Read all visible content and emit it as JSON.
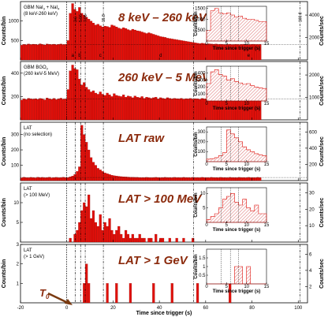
{
  "chart_data": {
    "type": "bar",
    "xlabel": "Time since trigger (s)",
    "xlim": [
      -20,
      104
    ],
    "x_ticks": [
      -20,
      0,
      20,
      40,
      60,
      80,
      100
    ],
    "bin_width_s": 1,
    "vertical_lines": [
      {
        "x": 0,
        "label": ""
      },
      {
        "x": 3.6,
        "label": "3.6"
      },
      {
        "x": 5.96,
        "label": "5.96"
      },
      {
        "x": 7.96,
        "label": "7.96"
      },
      {
        "x": 15.8,
        "label": "15.8"
      },
      {
        "x": 54.7,
        "label": "54.7"
      },
      {
        "x": 100.8,
        "label": "100.8"
      }
    ],
    "interval_labels": [
      "a",
      "b",
      "c",
      "d",
      "e"
    ],
    "t0_label": "T",
    "t0_sub": "0",
    "panels": [
      {
        "title": "8 keV – 260 keV",
        "detector": [
          "GBM NaI",
          "3",
          " + NaI",
          "4",
          "(8 keV-260 keV)"
        ],
        "ylabel_left": "Counts/bin",
        "ylabel_right": "Counts/sec",
        "ylim": [
          0,
          1500
        ],
        "y_ticks": [
          500,
          1000
        ],
        "y2_ticks": [
          2000,
          4000
        ],
        "background": 400,
        "values": [
          380,
          400,
          390,
          410,
          395,
          405,
          400,
          390,
          415,
          400,
          385,
          410,
          400,
          395,
          405,
          390,
          400,
          410,
          395,
          400,
          500,
          1200,
          1450,
          1300,
          1250,
          1350,
          1200,
          1150,
          1100,
          1050,
          1000,
          950,
          900,
          920,
          880,
          850,
          870,
          860,
          840,
          900,
          880,
          850,
          820,
          800,
          830,
          810,
          780,
          760,
          790,
          770,
          750,
          740,
          720,
          700,
          680,
          700,
          680,
          660,
          640,
          620,
          600,
          590,
          580,
          560,
          550,
          540,
          530,
          520,
          510,
          500,
          490,
          480,
          470,
          460,
          450,
          440,
          430,
          420,
          430,
          420,
          410,
          415,
          410,
          405,
          410,
          400,
          405,
          400,
          395,
          400,
          405,
          395,
          400,
          400,
          395,
          400,
          405,
          400,
          395,
          400,
          405,
          400,
          398,
          402
        ],
        "inset": {
          "ylabel": "Counts/bin",
          "xlabel": "Time since trigger (s)",
          "xlim": [
            0,
            15
          ],
          "ylim": [
            0,
            1600
          ],
          "y_ticks": [
            500,
            1000,
            1500
          ],
          "x_ticks": [
            0,
            5,
            10,
            15
          ],
          "values": [
            500,
            1400,
            1500,
            1300,
            1250,
            1300,
            1200,
            1100,
            1150,
            1050,
            1000,
            1000,
            950,
            900,
            900
          ]
        }
      },
      {
        "title": "260 keV – 5 MeV",
        "detector": [
          "GBM BGO",
          "0",
          "",
          "",
          "(260 keV-5 MeV)"
        ],
        "ylabel_left": "Counts/bin",
        "ylabel_right": "Counts/sec",
        "ylim": [
          0,
          500
        ],
        "y_ticks": [
          200,
          400
        ],
        "y2_ticks": [
          1000,
          2000
        ],
        "background": 180,
        "values": [
          170,
          180,
          175,
          185,
          180,
          178,
          182,
          176,
          184,
          180,
          172,
          188,
          180,
          176,
          184,
          174,
          180,
          186,
          178,
          180,
          260,
          420,
          470,
          440,
          430,
          350,
          300,
          320,
          280,
          260,
          240,
          250,
          230,
          220,
          240,
          220,
          210,
          230,
          215,
          200,
          225,
          210,
          205,
          200,
          215,
          195,
          205,
          200,
          190,
          205,
          195,
          190,
          200,
          185,
          195,
          190,
          185,
          190,
          195,
          180,
          190,
          185,
          180,
          190,
          185,
          180,
          185,
          182,
          180,
          185,
          178,
          182,
          180,
          184,
          178,
          182,
          180,
          176,
          184,
          180,
          178,
          182,
          180,
          176,
          184,
          180,
          178,
          182,
          180,
          176,
          184,
          180,
          178,
          182,
          180,
          178,
          182,
          180,
          176,
          184,
          180,
          178,
          182,
          180
        ],
        "inset": {
          "ylabel": "Counts/bin",
          "xlabel": "Time since trigger (s)",
          "xlim": [
            0,
            15
          ],
          "ylim": [
            0,
            500
          ],
          "y_ticks": [
            100,
            200,
            300,
            400
          ],
          "x_ticks": [
            0,
            5,
            10,
            15
          ],
          "values": [
            250,
            420,
            450,
            380,
            360,
            300,
            320,
            280,
            260,
            240,
            250,
            220,
            200,
            190,
            180
          ]
        }
      },
      {
        "title": "LAT raw",
        "detector": [
          "LAT",
          "",
          "",
          "",
          "(no selection)"
        ],
        "ylabel_left": "Counts/bin",
        "ylabel_right": "Counts/sec",
        "ylim": [
          0,
          380
        ],
        "y_ticks": [
          100,
          200,
          300
        ],
        "y2_ticks": [
          200,
          400,
          600
        ],
        "background": 20,
        "values": [
          18,
          22,
          20,
          19,
          21,
          20,
          18,
          22,
          20,
          21,
          19,
          20,
          22,
          18,
          20,
          21,
          19,
          20,
          22,
          20,
          20,
          25,
          30,
          40,
          60,
          90,
          360,
          300,
          250,
          200,
          150,
          120,
          100,
          80,
          70,
          60,
          50,
          45,
          40,
          35,
          32,
          30,
          28,
          26,
          25,
          24,
          23,
          22,
          22,
          21,
          21,
          20,
          20,
          20,
          21,
          20,
          19,
          20,
          21,
          20,
          19,
          20,
          21,
          20,
          20,
          19,
          21,
          20,
          20,
          19,
          21,
          20,
          20,
          19,
          21,
          20,
          20,
          19,
          21,
          20,
          20,
          19,
          21,
          20,
          20,
          19,
          21,
          20,
          20,
          19,
          21,
          20,
          20,
          19,
          21,
          20,
          20,
          19,
          21,
          20,
          20,
          19,
          21,
          20
        ],
        "inset": {
          "ylabel": "Counts/bin",
          "xlabel": "Time since trigger (s)",
          "xlim": [
            0,
            15
          ],
          "ylim": [
            0,
            350
          ],
          "y_ticks": [
            100,
            200,
            300
          ],
          "x_ticks": [
            0,
            5,
            10,
            15
          ],
          "values": [
            25,
            30,
            40,
            60,
            90,
            320,
            280,
            240,
            200,
            150,
            120,
            100,
            80,
            70,
            60
          ]
        }
      },
      {
        "title": "LAT > 100 MeV",
        "detector": [
          "LAT",
          "",
          "",
          "",
          "(> 100 MeV)"
        ],
        "ylabel_left": "Counts/bin",
        "ylabel_right": "Counts/sec",
        "ylim": [
          0,
          15
        ],
        "y_ticks": [
          5,
          10
        ],
        "y2_ticks": [
          10,
          20,
          30
        ],
        "background": 0,
        "values": [
          0,
          0,
          0,
          0,
          0,
          0,
          0,
          0,
          0,
          0,
          0,
          0,
          0,
          0,
          0,
          0,
          0,
          0,
          0,
          0,
          0,
          1,
          0,
          2,
          3,
          5,
          8,
          10,
          9,
          12,
          6,
          8,
          5,
          4,
          7,
          3,
          5,
          4,
          6,
          3,
          2,
          3,
          4,
          2,
          1,
          3,
          2,
          1,
          2,
          1,
          1,
          2,
          1,
          1,
          0,
          1,
          1,
          0,
          2,
          0,
          1,
          1,
          0,
          0,
          1,
          0,
          0,
          1,
          0,
          0,
          1,
          0,
          0,
          0,
          1,
          0,
          0,
          0,
          0,
          0,
          0,
          0,
          0,
          0,
          0,
          0,
          0,
          0,
          0,
          0,
          0,
          0,
          0,
          0,
          0,
          0,
          0,
          0,
          0,
          0,
          0,
          0,
          0,
          0
        ],
        "inset": {
          "ylabel": "Counts/bin",
          "xlabel": "Time since trigger (s)",
          "xlim": [
            0,
            15
          ],
          "ylim": [
            0,
            12
          ],
          "y_ticks": [
            5,
            10
          ],
          "x_ticks": [
            0,
            5,
            10,
            15
          ],
          "values": [
            1,
            2,
            3,
            5,
            8,
            9,
            10,
            7,
            6,
            8,
            5,
            4,
            6,
            3,
            3
          ]
        }
      },
      {
        "title": "LAT > 1 GeV",
        "detector": [
          "LAT",
          "",
          "",
          "",
          "(> 1 GeV)"
        ],
        "ylabel_left": "Counts/bin",
        "ylabel_right": "Counts/sec",
        "ylim": [
          0,
          3
        ],
        "y_ticks": [
          1,
          2,
          3
        ],
        "y2_ticks": [
          2,
          4,
          6
        ],
        "background": 0,
        "values": [
          0,
          0,
          0,
          0,
          0,
          0,
          0,
          0,
          0,
          0,
          0,
          0,
          0,
          0,
          0,
          0,
          0,
          0,
          0,
          0,
          0,
          0,
          0,
          0,
          0,
          0,
          0,
          1,
          2,
          1,
          0,
          0,
          0,
          0,
          0,
          0,
          0,
          1,
          0,
          0,
          0,
          1,
          0,
          0,
          0,
          0,
          0,
          1,
          0,
          0,
          0,
          0,
          0,
          0,
          0,
          0,
          0,
          1,
          0,
          0,
          0,
          0,
          0,
          0,
          0,
          1,
          0,
          0,
          0,
          0,
          0,
          0,
          0,
          0,
          0,
          0,
          1,
          0,
          0,
          0,
          0,
          0,
          0,
          0,
          0,
          0,
          0,
          0,
          0,
          0,
          1,
          0,
          0,
          0,
          0,
          0,
          0,
          0,
          0,
          0,
          0,
          0,
          0,
          0
        ],
        "inset": {
          "ylabel": "Counts/bin",
          "xlabel": "Time since trigger (s)",
          "xlim": [
            0,
            15
          ],
          "ylim": [
            0,
            2
          ],
          "y_ticks": [
            0.5,
            1,
            1.5
          ],
          "x_ticks": [
            0,
            5,
            10,
            15
          ],
          "values": [
            0,
            0,
            0,
            0,
            0,
            0,
            0,
            1,
            1,
            0,
            1,
            0,
            0,
            0,
            0
          ]
        }
      }
    ]
  },
  "colors": {
    "bar": "#e0100a",
    "bar_edge": "#7a0000",
    "title": "#8b2a0c",
    "inset_hatch": "#e08080",
    "arrow": "#7a3a10"
  }
}
